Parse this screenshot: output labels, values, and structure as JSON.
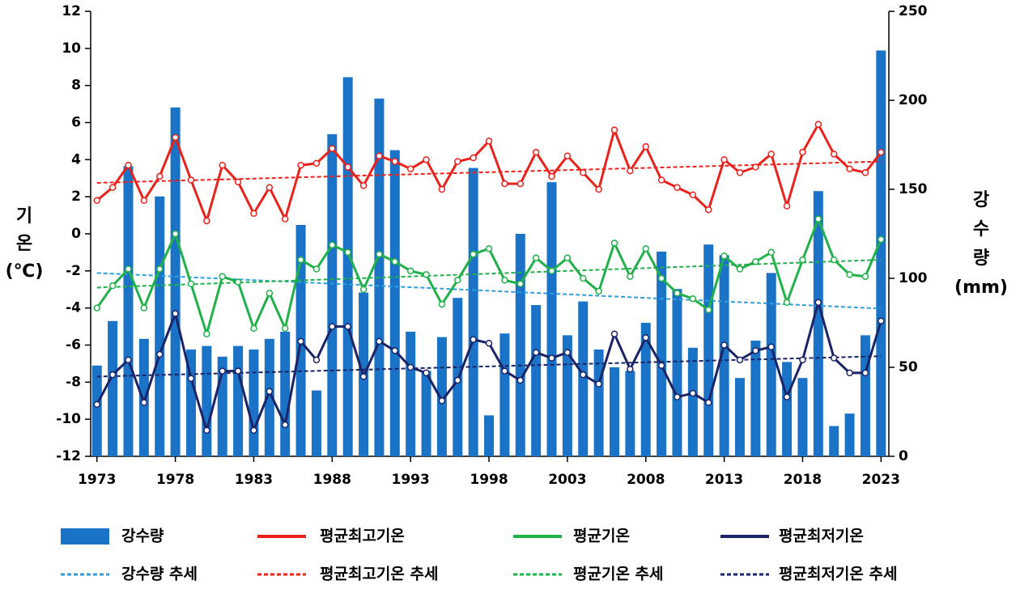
{
  "chart_data": {
    "type": "bar",
    "ylabel": [
      "기",
      "온",
      "(℃)"
    ],
    "y2label": [
      "강",
      "수",
      "량",
      "(mm)"
    ],
    "x": [
      1973,
      1974,
      1975,
      1976,
      1977,
      1978,
      1979,
      1980,
      1981,
      1982,
      1983,
      1984,
      1985,
      1986,
      1987,
      1988,
      1989,
      1990,
      1991,
      1992,
      1993,
      1994,
      1995,
      1996,
      1997,
      1998,
      1999,
      2000,
      2001,
      2002,
      2003,
      2004,
      2005,
      2006,
      2007,
      2008,
      2009,
      2010,
      2011,
      2012,
      2013,
      2014,
      2015,
      2016,
      2017,
      2018,
      2019,
      2020,
      2021,
      2022,
      2023
    ],
    "xlim": [
      1972.6,
      2023.5
    ],
    "xticks": [
      1973,
      1978,
      1983,
      1988,
      1993,
      1998,
      2003,
      2008,
      2013,
      2018,
      2023
    ],
    "ylim": [
      -12,
      12
    ],
    "yticks": [
      -12,
      -10,
      -8,
      -6,
      -4,
      -2,
      0,
      2,
      4,
      6,
      8,
      10,
      12
    ],
    "y2lim": [
      0,
      250
    ],
    "y2ticks": [
      0,
      50,
      100,
      150,
      200,
      250
    ],
    "series": [
      {
        "name": "강수량",
        "type": "bar",
        "axis": "y2",
        "color": "#1a73c6",
        "values": [
          51,
          76,
          163,
          66,
          146,
          196,
          60,
          62,
          56,
          62,
          60,
          66,
          70,
          130,
          37,
          181,
          213,
          92,
          201,
          172,
          70,
          48,
          67,
          89,
          162,
          23,
          69,
          125,
          85,
          154,
          68,
          87,
          60,
          50,
          48,
          75,
          115,
          94,
          61,
          119,
          113,
          44,
          65,
          103,
          53,
          44,
          149,
          17,
          24,
          68,
          228
        ]
      },
      {
        "name": "평균최고기온",
        "type": "line",
        "color": "#e8221c",
        "values": [
          1.8,
          2.5,
          3.7,
          1.8,
          3.1,
          5.2,
          2.9,
          0.7,
          3.7,
          2.8,
          1.1,
          2.5,
          0.8,
          3.7,
          3.8,
          4.6,
          3.6,
          2.6,
          4.2,
          3.9,
          3.5,
          4.0,
          2.4,
          3.9,
          4.1,
          5.0,
          2.7,
          2.7,
          4.4,
          3.1,
          4.2,
          3.3,
          2.4,
          5.6,
          3.4,
          4.7,
          2.9,
          2.5,
          2.1,
          1.3,
          4.0,
          3.3,
          3.6,
          4.3,
          1.5,
          4.4,
          5.9,
          4.3,
          3.5,
          3.3,
          4.4
        ]
      },
      {
        "name": "평균기온",
        "type": "line",
        "color": "#22b04b",
        "values": [
          -4.0,
          -2.8,
          -1.9,
          -4.0,
          -1.9,
          0.0,
          -2.7,
          -5.4,
          -2.3,
          -2.6,
          -5.1,
          -3.2,
          -5.1,
          -1.4,
          -1.9,
          -0.6,
          -1.0,
          -3.0,
          -1.1,
          -1.5,
          -2.0,
          -2.2,
          -3.8,
          -2.5,
          -1.1,
          -0.8,
          -2.5,
          -2.7,
          -1.3,
          -2.0,
          -1.3,
          -2.4,
          -3.1,
          -0.5,
          -2.3,
          -0.8,
          -2.4,
          -3.2,
          -3.5,
          -4.1,
          -1.2,
          -1.9,
          -1.5,
          -1.0,
          -3.7,
          -1.4,
          0.8,
          -1.4,
          -2.2,
          -2.3,
          -0.3
        ]
      },
      {
        "name": "평균최저기온",
        "type": "line",
        "color": "#1a2466",
        "values": [
          -9.2,
          -7.6,
          -6.8,
          -9.1,
          -6.5,
          -4.3,
          -7.8,
          -10.6,
          -7.4,
          -7.4,
          -10.6,
          -8.5,
          -10.3,
          -5.8,
          -6.8,
          -5.0,
          -5.0,
          -7.7,
          -5.8,
          -6.3,
          -7.2,
          -7.5,
          -9.0,
          -7.9,
          -5.7,
          -5.9,
          -7.4,
          -7.9,
          -6.4,
          -6.7,
          -6.4,
          -7.6,
          -8.1,
          -5.4,
          -7.3,
          -5.6,
          -7.1,
          -8.8,
          -8.6,
          -9.1,
          -6.0,
          -6.8,
          -6.3,
          -6.1,
          -8.8,
          -6.8,
          -3.7,
          -6.7,
          -7.5,
          -7.5,
          -4.7
        ]
      },
      {
        "name": "강수량 추세",
        "type": "trend",
        "axis": "y2",
        "color": "#2aa0e0",
        "x": [
          1973,
          2023
        ],
        "values": [
          103,
          83
        ]
      },
      {
        "name": "평균최고기온 추세",
        "type": "trend",
        "color": "#e8221c",
        "x": [
          1973,
          2023
        ],
        "values": [
          2.75,
          3.9
        ]
      },
      {
        "name": "평균기온 추세",
        "type": "trend",
        "color": "#22b04b",
        "x": [
          1973,
          2023
        ],
        "values": [
          -2.9,
          -1.4
        ]
      },
      {
        "name": "평균최저기온 추세",
        "type": "trend",
        "color": "#1a2466",
        "x": [
          1973,
          2023
        ],
        "values": [
          -7.7,
          -6.6
        ]
      }
    ]
  }
}
